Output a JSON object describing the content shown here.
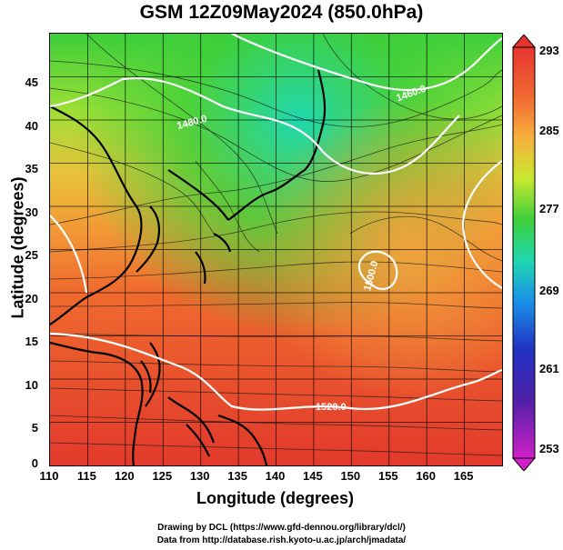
{
  "title": "GSM 12Z09May2024 (850.0hPa)",
  "x_axis": {
    "label": "Longitude (degrees)",
    "ticks": [
      "110",
      "115",
      "120",
      "125",
      "130",
      "135",
      "140",
      "145",
      "150",
      "155",
      "160",
      "165"
    ]
  },
  "y_axis": {
    "label": "Latitude (degrees)",
    "ticks": [
      "45",
      "40",
      "35",
      "30",
      "25",
      "20",
      "15",
      "10",
      "5",
      "0"
    ]
  },
  "colorbar": {
    "ticks": [
      "293",
      "285",
      "277",
      "269",
      "261",
      "253"
    ],
    "colors": [
      "#e8342f",
      "#f06830",
      "#f7b03c",
      "#c8e830",
      "#3ccf3a",
      "#1fd7b0",
      "#1a8fe8",
      "#2030c0",
      "#5020a8",
      "#d020c8"
    ]
  },
  "contour_labels": [
    "1520.0",
    "1500.0",
    "1480.0",
    "1460.0"
  ],
  "credits": {
    "line1": "Drawing by DCL (https://www.gfd-dennou.org/library/dcl/)",
    "line2": "Data from http://database.rish.kyoto-u.ac.jp/arch/jmadata/"
  },
  "map_extent": {
    "lon": [
      110,
      170
    ],
    "lat": [
      0,
      50
    ]
  },
  "theme": {
    "land_color": "#000000",
    "contour_color": "#ffffff"
  }
}
